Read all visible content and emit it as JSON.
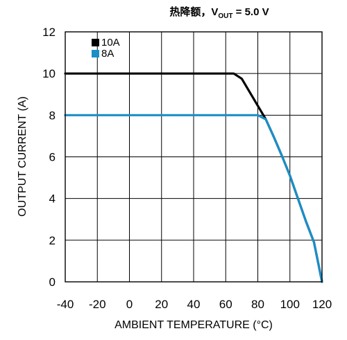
{
  "chart_data": {
    "type": "line",
    "title": {
      "prefix": "热降额，",
      "var_main": "V",
      "var_sub": "OUT",
      "suffix": " = 5.0 V"
    },
    "xlabel": "AMBIENT TEMPERATURE (°C)",
    "ylabel": "OUTPUT CURRENT (A)",
    "xlim": [
      -40,
      120
    ],
    "ylim": [
      0,
      12
    ],
    "xticks": [
      -40,
      -20,
      0,
      20,
      40,
      60,
      80,
      100,
      120
    ],
    "yticks": [
      0,
      2,
      4,
      6,
      8,
      10,
      12
    ],
    "grid": true,
    "legend": {
      "placement": "top-left"
    },
    "series": [
      {
        "name": "10A",
        "color": "#000000",
        "x": [
          -40,
          65,
          70,
          85,
          90,
          95,
          100,
          105,
          110,
          115,
          120
        ],
        "y": [
          10,
          10,
          9.75,
          7.8,
          6.95,
          6.05,
          5.1,
          4.0,
          2.9,
          1.9,
          0
        ]
      },
      {
        "name": "8A",
        "color": "#1a8fc7",
        "x": [
          -40,
          80,
          85,
          90,
          95,
          100,
          105,
          110,
          115,
          120
        ],
        "y": [
          8,
          8,
          7.8,
          6.95,
          6.05,
          5.1,
          4.0,
          2.9,
          1.9,
          0
        ]
      }
    ]
  }
}
